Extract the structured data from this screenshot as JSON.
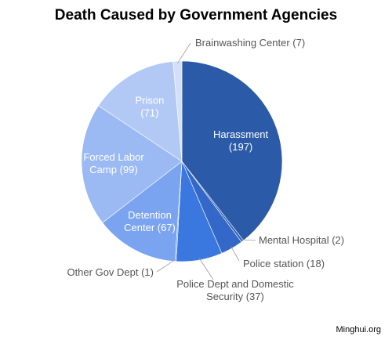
{
  "chart_data": {
    "type": "pie",
    "title": "Death Caused by Government Agencies",
    "slices": [
      {
        "label": "Harassment",
        "value": 197,
        "display": [
          "Harassment",
          "(197)"
        ],
        "color": "#2b5aa8",
        "inside": true
      },
      {
        "label": "Mental Hospital",
        "value": 2,
        "display": [
          "Mental Hospital (2)"
        ],
        "color": "#2e62b8",
        "inside": false
      },
      {
        "label": "Police station",
        "value": 18,
        "display": [
          "Police station (18)"
        ],
        "color": "#3468c8",
        "inside": false
      },
      {
        "label": "Police Dept and Domestic Security",
        "value": 37,
        "display": [
          "Police Dept and Domestic",
          "Security (37)"
        ],
        "color": "#3a78e0",
        "inside": false
      },
      {
        "label": "Other Gov Dept",
        "value": 1,
        "display": [
          "Other Gov Dept (1)"
        ],
        "color": "#5a8ee8",
        "inside": false
      },
      {
        "label": "Detention Center",
        "value": 67,
        "display": [
          "Detention",
          "Center (67)"
        ],
        "color": "#7aa3f0",
        "inside": true
      },
      {
        "label": "Forced Labor Camp",
        "value": 99,
        "display": [
          "Forced Labor",
          "Camp (99)"
        ],
        "color": "#9bb9f2",
        "inside": true
      },
      {
        "label": "Prison",
        "value": 71,
        "display": [
          "Prison",
          "(71)"
        ],
        "color": "#b3c9f5",
        "inside": true
      },
      {
        "label": "Brainwashing Center",
        "value": 7,
        "display": [
          "Brainwashing Center (7)"
        ],
        "color": "#d4e0fa",
        "inside": false
      }
    ]
  },
  "credit": "Minghui.org"
}
